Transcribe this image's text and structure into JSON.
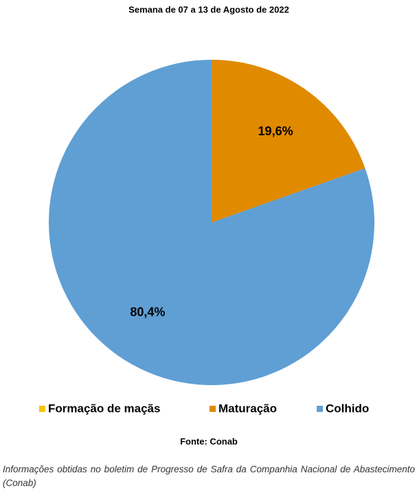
{
  "chart_data": {
    "type": "pie",
    "title": "Semana de 07 a 13 de Agosto de 2022",
    "categories": [
      "Formação de maçãs",
      "Maturação",
      "Colhido"
    ],
    "values": [
      0,
      19.6,
      80.4
    ],
    "value_labels": [
      null,
      "19,6%",
      "80,4%"
    ],
    "colors": [
      "#f5c400",
      "#e08a00",
      "#5f9fd4"
    ],
    "legend": "bottom",
    "source": "Fonte: Conab"
  },
  "caption": "Informações obtidas no boletim de Progresso de Safra da Companhia Nacional de Abastecimento (Conab)"
}
